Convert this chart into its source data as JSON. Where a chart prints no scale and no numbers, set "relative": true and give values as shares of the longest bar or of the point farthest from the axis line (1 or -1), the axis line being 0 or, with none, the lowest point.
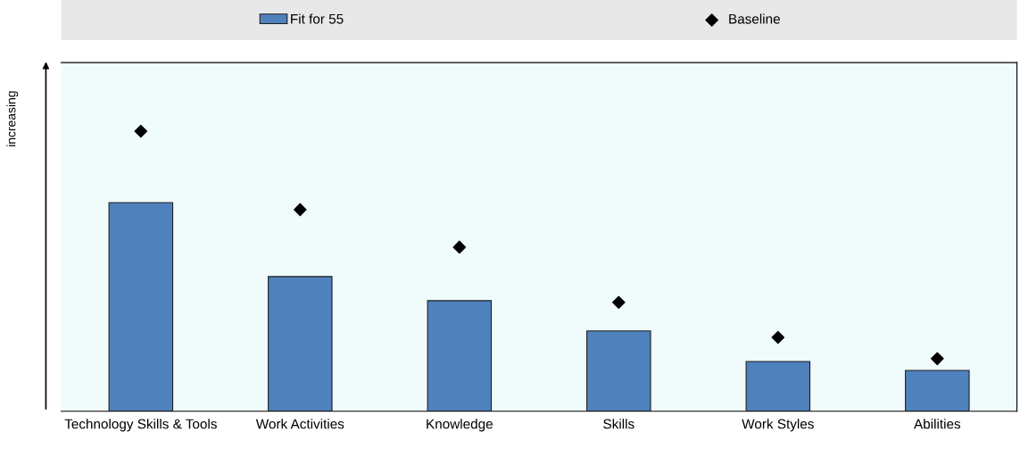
{
  "chart_data": {
    "type": "bar",
    "relative": true,
    "ylabel": "increasing",
    "categories": [
      "Technology Skills & Tools",
      "Work Activities",
      "Knowledge",
      "Skills",
      "Work Styles",
      "Abilities"
    ],
    "series": [
      {
        "name": "Fit for 55",
        "color": "#4f81bd",
        "values": [
          0.745,
          0.481,
          0.395,
          0.287,
          0.178,
          0.146
        ]
      },
      {
        "name": "Baseline",
        "type": "scatter",
        "color": "#000000",
        "marker": "diamond",
        "values": [
          1,
          0.72,
          0.586,
          0.389,
          0.264,
          0.188
        ]
      }
    ],
    "legend": "top"
  }
}
